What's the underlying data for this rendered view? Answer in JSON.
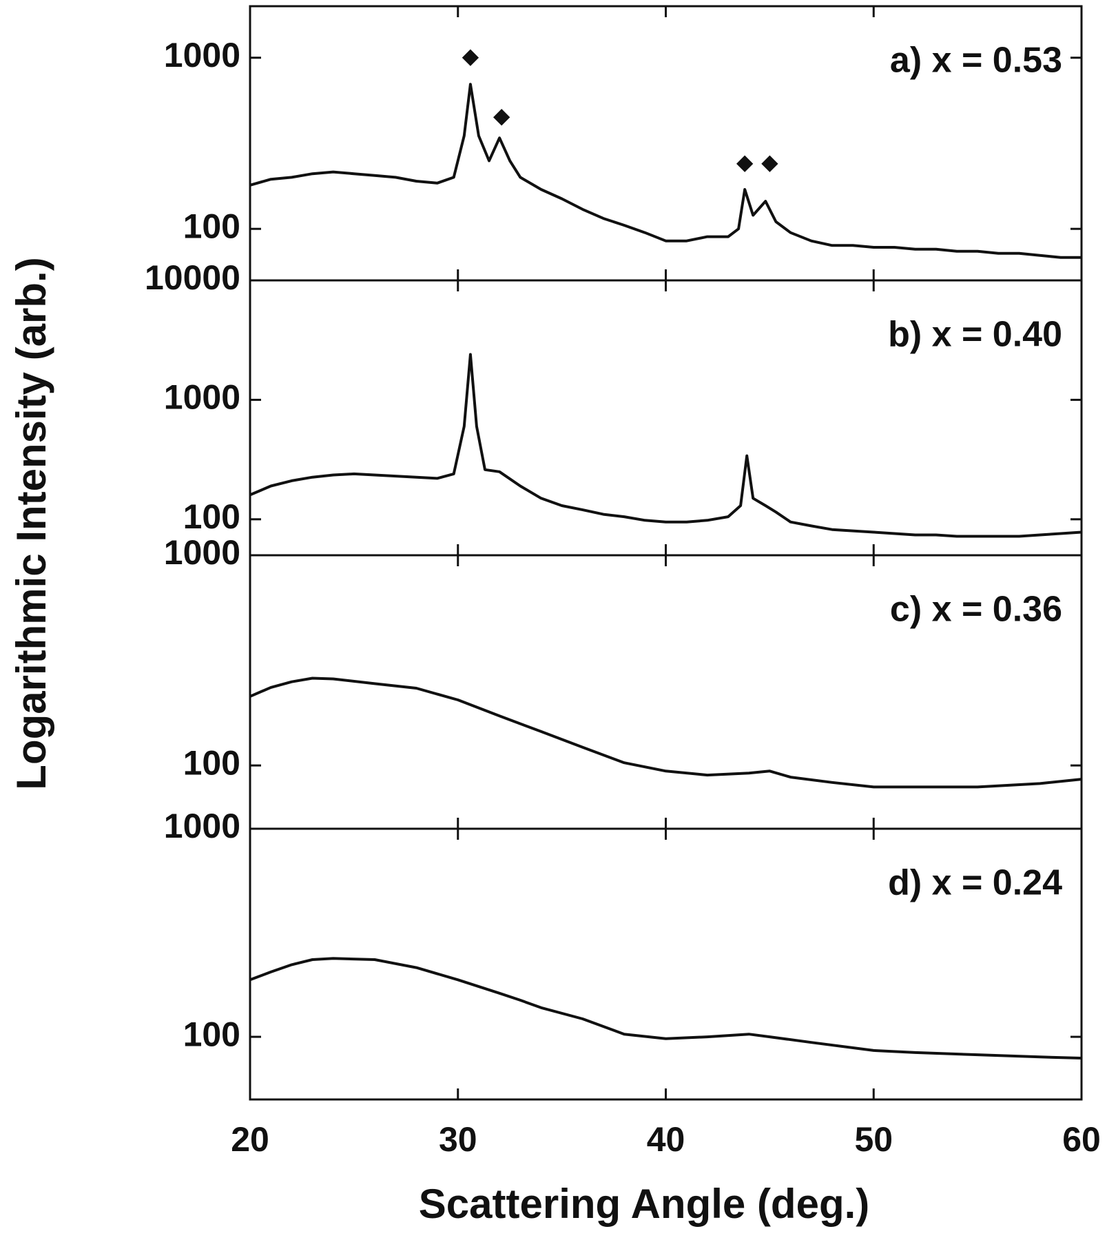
{
  "chart_data": [
    {
      "type": "line",
      "label": "a) x = 0.53",
      "ylabel": "Logarithmic Intensity (arb.)",
      "log_y": true,
      "color": "#111111",
      "xlim": [
        20,
        60
      ],
      "xticks": [
        20,
        30,
        40,
        50,
        60
      ],
      "ylim": [
        50,
        2000
      ],
      "yticks": [
        100,
        1000
      ],
      "x": [
        20,
        21,
        22,
        23,
        24,
        25,
        26,
        27,
        28,
        29,
        29.8,
        30.3,
        30.6,
        31,
        31.5,
        32,
        32.5,
        33,
        34,
        35,
        36,
        37,
        38,
        39,
        40,
        41,
        42,
        43,
        43.5,
        43.8,
        44.2,
        44.8,
        45.3,
        46,
        47,
        48,
        49,
        50,
        51,
        52,
        53,
        54,
        55,
        56,
        57,
        58,
        59,
        60
      ],
      "values": [
        180,
        195,
        200,
        210,
        215,
        210,
        205,
        200,
        190,
        185,
        200,
        350,
        700,
        350,
        250,
        340,
        250,
        200,
        170,
        150,
        130,
        115,
        105,
        95,
        85,
        85,
        90,
        90,
        100,
        170,
        120,
        145,
        110,
        95,
        85,
        80,
        80,
        78,
        78,
        76,
        76,
        74,
        74,
        72,
        72,
        70,
        68,
        68
      ],
      "annotations": [
        {
          "text": "◆",
          "x": 30.6,
          "y": 1000
        },
        {
          "text": "◆",
          "x": 32.1,
          "y": 450
        },
        {
          "text": "◆",
          "x": 43.8,
          "y": 240
        },
        {
          "text": "◆",
          "x": 45,
          "y": 240
        }
      ]
    },
    {
      "type": "line",
      "label": "b) x = 0.40",
      "log_y": true,
      "color": "#111111",
      "xlim": [
        20,
        60
      ],
      "xticks": [
        20,
        30,
        40,
        50,
        60
      ],
      "ylim": [
        50,
        10000
      ],
      "yticks": [
        100,
        1000,
        10000
      ],
      "x": [
        20,
        21,
        22,
        23,
        24,
        25,
        26,
        27,
        28,
        29,
        29.8,
        30.3,
        30.6,
        30.9,
        31.3,
        32,
        33,
        34,
        35,
        36,
        37,
        38,
        39,
        40,
        41,
        42,
        43,
        43.6,
        43.9,
        44.2,
        44.8,
        45.3,
        46,
        47,
        48,
        49,
        50,
        51,
        52,
        53,
        54,
        55,
        56,
        57,
        58,
        59,
        60
      ],
      "values": [
        160,
        190,
        210,
        225,
        235,
        240,
        235,
        230,
        225,
        220,
        240,
        600,
        2400,
        600,
        260,
        250,
        190,
        150,
        130,
        120,
        110,
        105,
        98,
        95,
        95,
        98,
        105,
        130,
        340,
        150,
        130,
        115,
        95,
        88,
        82,
        80,
        78,
        76,
        74,
        74,
        72,
        72,
        72,
        72,
        74,
        76,
        78
      ]
    },
    {
      "type": "line",
      "label": "c) x = 0.36",
      "log_y": true,
      "color": "#111111",
      "xlim": [
        20,
        60
      ],
      "xticks": [
        20,
        30,
        40,
        50,
        60
      ],
      "ylim": [
        50,
        1000
      ],
      "yticks": [
        100,
        1000
      ],
      "x": [
        20,
        21,
        22,
        23,
        24,
        26,
        28,
        30,
        32,
        34,
        36,
        38,
        40,
        42,
        44,
        45,
        46,
        48,
        50,
        52,
        55,
        58,
        60
      ],
      "values": [
        213,
        235,
        250,
        260,
        258,
        245,
        233,
        205,
        172,
        145,
        122,
        103,
        94,
        90,
        92,
        94,
        88,
        83,
        79,
        79,
        79,
        82,
        86
      ]
    },
    {
      "type": "line",
      "label": "d) x = 0.24",
      "xlabel": "Scattering Angle (deg.)",
      "show_xticklabels": true,
      "log_y": true,
      "color": "#111111",
      "xlim": [
        20,
        60
      ],
      "xticks": [
        20,
        30,
        40,
        50,
        60
      ],
      "ylim": [
        50,
        1000
      ],
      "yticks": [
        100,
        1000
      ],
      "x": [
        20,
        21,
        22,
        23,
        24,
        26,
        28,
        30,
        32,
        33,
        34,
        36,
        38,
        40,
        42,
        44,
        45,
        47,
        50,
        52,
        55,
        58,
        60
      ],
      "values": [
        188,
        205,
        222,
        235,
        238,
        235,
        215,
        188,
        162,
        150,
        138,
        122,
        103,
        98,
        100,
        103,
        100,
        94,
        86,
        84,
        82,
        80,
        79
      ]
    }
  ]
}
